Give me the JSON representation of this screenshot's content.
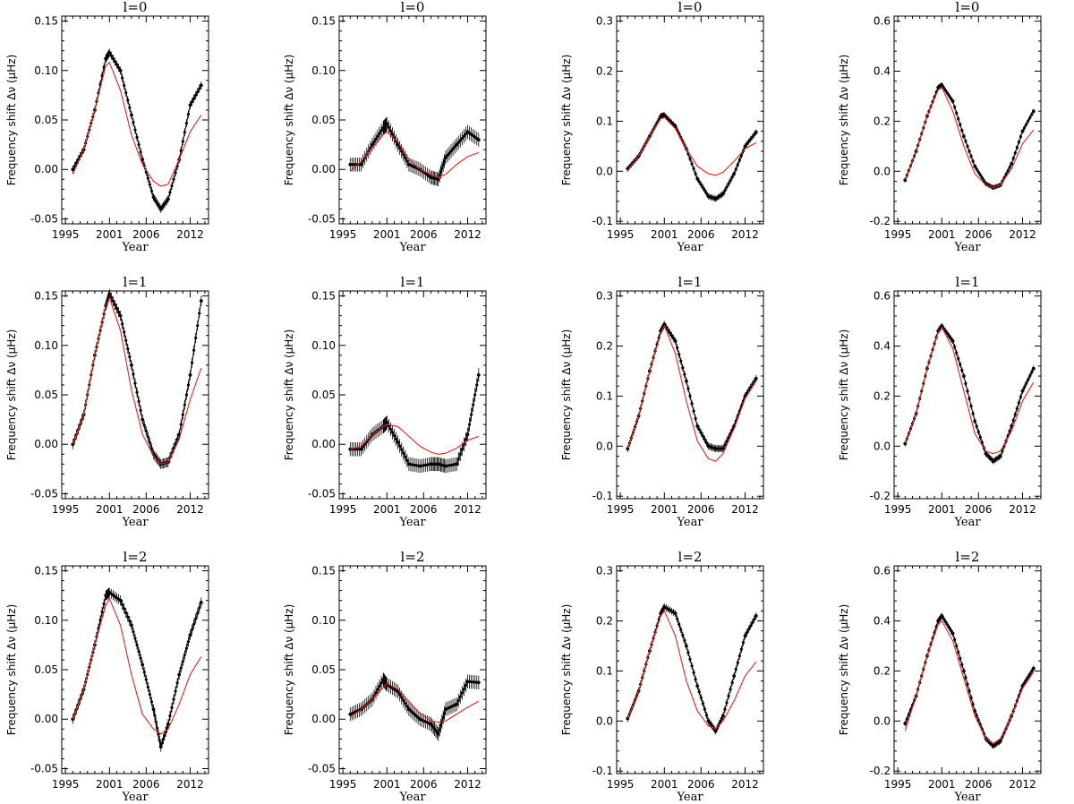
{
  "figure": {
    "ylabel": "Frequency shift Δν (μHz)",
    "xlabel": "Year"
  },
  "chart_data": [
    {
      "type": "line",
      "title": "l=0",
      "xlabel": "Year",
      "ylabel": "Frequency shift Δν (μHz)",
      "xlim": [
        1994.5,
        2014.5
      ],
      "ylim": [
        -0.055,
        0.155
      ],
      "xticks": [
        1995,
        2001,
        2006,
        2012
      ],
      "yticks": [
        -0.05,
        0.0,
        0.05,
        0.1,
        0.15
      ],
      "ytick_labels": [
        "-0.05",
        "0.00",
        "0.05",
        "0.10",
        "0.15"
      ],
      "x": [
        1996,
        1997.5,
        1999,
        2000.5,
        2001,
        2002.5,
        2004,
        2005.5,
        2007,
        2008,
        2009,
        2010.5,
        2012,
        2013.5
      ],
      "series": [
        {
          "values": [
            0.0,
            0.02,
            0.06,
            0.112,
            0.118,
            0.1,
            0.055,
            0.01,
            -0.028,
            -0.04,
            -0.03,
            0.01,
            0.065,
            0.085
          ],
          "err": 0.004
        },
        {
          "values": [
            -0.005,
            0.02,
            0.06,
            0.105,
            0.108,
            0.08,
            0.035,
            0.005,
            -0.012,
            -0.017,
            -0.015,
            0.01,
            0.038,
            0.055
          ]
        }
      ]
    },
    {
      "type": "line",
      "title": "l=0",
      "xlabel": "Year",
      "ylabel": "Frequency shift Δν (μHz)",
      "xlim": [
        1994.5,
        2014.5
      ],
      "ylim": [
        -0.055,
        0.155
      ],
      "xticks": [
        1995,
        2001,
        2006,
        2012
      ],
      "yticks": [
        -0.05,
        0.0,
        0.05,
        0.1,
        0.15
      ],
      "ytick_labels": [
        "-0.05",
        "0.00",
        "0.05",
        "0.10",
        "0.15"
      ],
      "x": [
        1996,
        1997.5,
        1999,
        2000.5,
        2001,
        2002.5,
        2004,
        2005.5,
        2007,
        2008,
        2009,
        2010.5,
        2012,
        2013.5
      ],
      "series": [
        {
          "values": [
            0.005,
            0.005,
            0.025,
            0.042,
            0.046,
            0.025,
            0.005,
            0.0,
            -0.008,
            -0.01,
            0.012,
            0.025,
            0.038,
            0.03
          ],
          "err": 0.007
        },
        {
          "values": [
            -0.002,
            0.008,
            0.022,
            0.035,
            0.038,
            0.028,
            0.01,
            0.0,
            -0.005,
            -0.008,
            -0.005,
            0.005,
            0.013,
            0.017
          ]
        }
      ]
    },
    {
      "type": "line",
      "title": "l=0",
      "xlabel": "Year",
      "ylabel": "Frequency shift Δν (μHz)",
      "xlim": [
        1994.5,
        2014.5
      ],
      "ylim": [
        -0.105,
        0.31
      ],
      "xticks": [
        1995,
        2001,
        2006,
        2012
      ],
      "yticks": [
        -0.1,
        0.0,
        0.1,
        0.2,
        0.3
      ],
      "ytick_labels": [
        "-0.1",
        "0.0",
        "0.1",
        "0.2",
        "0.3"
      ],
      "x": [
        1996,
        1997.5,
        1999,
        2000.5,
        2001,
        2002.5,
        2004,
        2005.5,
        2007,
        2008,
        2009,
        2010.5,
        2012,
        2013.5
      ],
      "series": [
        {
          "values": [
            0.005,
            0.03,
            0.07,
            0.11,
            0.112,
            0.09,
            0.045,
            -0.015,
            -0.05,
            -0.055,
            -0.045,
            -0.005,
            0.05,
            0.078
          ],
          "err": 0.006
        },
        {
          "values": [
            0.002,
            0.03,
            0.07,
            0.105,
            0.108,
            0.085,
            0.045,
            0.01,
            -0.005,
            -0.008,
            -0.002,
            0.02,
            0.045,
            0.057
          ]
        }
      ]
    },
    {
      "type": "line",
      "title": "l=0",
      "xlabel": "Year",
      "ylabel": "Frequency shift Δν (μHz)",
      "xlim": [
        1994.5,
        2014.5
      ],
      "ylim": [
        -0.21,
        0.62
      ],
      "xticks": [
        1995,
        2001,
        2006,
        2012
      ],
      "yticks": [
        -0.2,
        0.0,
        0.2,
        0.4,
        0.6
      ],
      "ytick_labels": [
        "-0.2",
        "0.0",
        "0.2",
        "0.4",
        "0.6"
      ],
      "x": [
        1996,
        1997.5,
        1999,
        2000.5,
        2001,
        2002.5,
        2004,
        2005.5,
        2007,
        2008,
        2009,
        2010.5,
        2012,
        2013.5
      ],
      "series": [
        {
          "values": [
            -0.035,
            0.08,
            0.22,
            0.335,
            0.345,
            0.28,
            0.14,
            0.02,
            -0.05,
            -0.065,
            -0.055,
            0.03,
            0.16,
            0.24
          ],
          "err": 0.01
        },
        {
          "values": [
            -0.035,
            0.08,
            0.22,
            0.325,
            0.335,
            0.24,
            0.1,
            -0.01,
            -0.055,
            -0.065,
            -0.055,
            0.01,
            0.11,
            0.165
          ]
        }
      ]
    },
    {
      "type": "line",
      "title": "l=1",
      "xlabel": "Year",
      "ylabel": "Frequency shift Δν (μHz)",
      "xlim": [
        1994.5,
        2014.5
      ],
      "ylim": [
        -0.055,
        0.155
      ],
      "xticks": [
        1995,
        2001,
        2006,
        2012
      ],
      "yticks": [
        -0.05,
        0.0,
        0.05,
        0.1,
        0.15
      ],
      "ytick_labels": [
        "-0.05",
        "0.00",
        "0.05",
        "0.10",
        "0.15"
      ],
      "x": [
        1996,
        1997.5,
        1999,
        2000.5,
        2001,
        2002.5,
        2004,
        2005.5,
        2007,
        2008,
        2009,
        2010.5,
        2012,
        2013.5
      ],
      "series": [
        {
          "values": [
            0.0,
            0.03,
            0.09,
            0.14,
            0.152,
            0.13,
            0.08,
            0.025,
            -0.01,
            -0.02,
            -0.018,
            0.01,
            0.07,
            0.145
          ],
          "err": 0.005
        },
        {
          "values": [
            0.0,
            0.03,
            0.09,
            0.14,
            0.148,
            0.115,
            0.055,
            0.01,
            -0.012,
            -0.02,
            -0.018,
            0.005,
            0.045,
            0.077
          ]
        }
      ]
    },
    {
      "type": "line",
      "title": "l=1",
      "xlabel": "Year",
      "ylabel": "Frequency shift Δν (μHz)",
      "xlim": [
        1994.5,
        2014.5
      ],
      "ylim": [
        -0.055,
        0.155
      ],
      "xticks": [
        1995,
        2001,
        2006,
        2012
      ],
      "yticks": [
        -0.05,
        0.0,
        0.05,
        0.1,
        0.15
      ],
      "ytick_labels": [
        "-0.05",
        "0.00",
        "0.05",
        "0.10",
        "0.15"
      ],
      "x": [
        1996,
        1997.5,
        1999,
        2000.5,
        2001,
        2002.5,
        2004,
        2005.5,
        2007,
        2008,
        2009,
        2010.5,
        2012,
        2013.5
      ],
      "series": [
        {
          "values": [
            -0.005,
            -0.005,
            0.01,
            0.018,
            0.022,
            0.002,
            -0.02,
            -0.022,
            -0.02,
            -0.02,
            -0.022,
            -0.02,
            0.01,
            0.07
          ],
          "err": 0.007
        },
        {
          "values": [
            -0.005,
            -0.002,
            0.01,
            0.018,
            0.02,
            0.018,
            0.008,
            -0.002,
            -0.008,
            -0.01,
            -0.009,
            -0.004,
            0.004,
            0.008
          ]
        }
      ]
    },
    {
      "type": "line",
      "title": "l=1",
      "xlabel": "Year",
      "ylabel": "Frequency shift Δν (μHz)",
      "xlim": [
        1994.5,
        2014.5
      ],
      "ylim": [
        -0.105,
        0.31
      ],
      "xticks": [
        1995,
        2001,
        2006,
        2012
      ],
      "yticks": [
        -0.1,
        0.0,
        0.1,
        0.2,
        0.3
      ],
      "ytick_labels": [
        "-0.1",
        "0.0",
        "0.1",
        "0.2",
        "0.3"
      ],
      "x": [
        1996,
        1997.5,
        1999,
        2000.5,
        2001,
        2002.5,
        2004,
        2005.5,
        2007,
        2008,
        2009,
        2010.5,
        2012,
        2013.5
      ],
      "series": [
        {
          "values": [
            -0.005,
            0.06,
            0.15,
            0.23,
            0.243,
            0.21,
            0.13,
            0.04,
            0.0,
            -0.005,
            -0.005,
            0.04,
            0.1,
            0.135
          ],
          "err": 0.007
        },
        {
          "values": [
            -0.005,
            0.06,
            0.15,
            0.225,
            0.24,
            0.185,
            0.09,
            0.01,
            -0.025,
            -0.03,
            -0.015,
            0.035,
            0.095,
            0.13
          ]
        }
      ]
    },
    {
      "type": "line",
      "title": "l=1",
      "xlabel": "Year",
      "ylabel": "Frequency shift Δν (μHz)",
      "xlim": [
        1994.5,
        2014.5
      ],
      "ylim": [
        -0.21,
        0.62
      ],
      "xticks": [
        1995,
        2001,
        2006,
        2012
      ],
      "yticks": [
        -0.2,
        0.0,
        0.2,
        0.4,
        0.6
      ],
      "ytick_labels": [
        "-0.2",
        "0.0",
        "0.2",
        "0.4",
        "0.6"
      ],
      "x": [
        1996,
        1997.5,
        1999,
        2000.5,
        2001,
        2002.5,
        2004,
        2005.5,
        2007,
        2008,
        2009,
        2010.5,
        2012,
        2013.5
      ],
      "series": [
        {
          "values": [
            0.01,
            0.13,
            0.31,
            0.46,
            0.48,
            0.42,
            0.28,
            0.1,
            -0.03,
            -0.06,
            -0.04,
            0.08,
            0.22,
            0.31
          ],
          "err": 0.012
        },
        {
          "values": [
            0.01,
            0.13,
            0.31,
            0.455,
            0.475,
            0.39,
            0.22,
            0.05,
            -0.02,
            -0.03,
            -0.02,
            0.06,
            0.18,
            0.255
          ]
        }
      ]
    },
    {
      "type": "line",
      "title": "l=2",
      "xlabel": "Year",
      "ylabel": "Frequency shift Δν (μHz)",
      "xlim": [
        1994.5,
        2014.5
      ],
      "ylim": [
        -0.055,
        0.155
      ],
      "xticks": [
        1995,
        2001,
        2006,
        2012
      ],
      "yticks": [
        -0.05,
        0.0,
        0.05,
        0.1,
        0.15
      ],
      "ytick_labels": [
        "-0.05",
        "0.00",
        "0.05",
        "0.10",
        "0.15"
      ],
      "x": [
        1996,
        1997.5,
        1999,
        2000.5,
        2001,
        2002.5,
        2004,
        2005.5,
        2007,
        2008,
        2009,
        2010.5,
        2012,
        2013.5
      ],
      "series": [
        {
          "values": [
            0.0,
            0.03,
            0.075,
            0.125,
            0.128,
            0.12,
            0.095,
            0.055,
            0.01,
            -0.028,
            -0.005,
            0.045,
            0.085,
            0.118
          ],
          "err": 0.005
        },
        {
          "values": [
            0.0,
            0.03,
            0.075,
            0.115,
            0.122,
            0.095,
            0.045,
            0.005,
            -0.01,
            -0.015,
            -0.01,
            0.015,
            0.045,
            0.063
          ]
        }
      ]
    },
    {
      "type": "line",
      "title": "l=2",
      "xlabel": "Year",
      "ylabel": "Frequency shift Δν (μHz)",
      "xlim": [
        1994.5,
        2014.5
      ],
      "ylim": [
        -0.055,
        0.155
      ],
      "xticks": [
        1995,
        2001,
        2006,
        2012
      ],
      "yticks": [
        -0.05,
        0.0,
        0.05,
        0.1,
        0.15
      ],
      "ytick_labels": [
        "-0.05",
        "0.00",
        "0.05",
        "0.10",
        "0.15"
      ],
      "x": [
        1996,
        1997.5,
        1999,
        2000.5,
        2001,
        2002.5,
        2004,
        2005.5,
        2007,
        2008,
        2009,
        2010.5,
        2012,
        2013.5
      ],
      "series": [
        {
          "values": [
            0.005,
            0.01,
            0.02,
            0.04,
            0.035,
            0.028,
            0.01,
            0.0,
            -0.005,
            -0.015,
            0.01,
            0.015,
            0.038,
            0.037
          ],
          "err": 0.007
        },
        {
          "values": [
            0.002,
            0.01,
            0.02,
            0.032,
            0.036,
            0.03,
            0.018,
            0.006,
            -0.002,
            -0.003,
            -0.002,
            0.005,
            0.012,
            0.018
          ]
        }
      ]
    },
    {
      "type": "line",
      "title": "l=2",
      "xlabel": "Year",
      "ylabel": "Frequency shift Δν (μHz)",
      "xlim": [
        1994.5,
        2014.5
      ],
      "ylim": [
        -0.105,
        0.31
      ],
      "xticks": [
        1995,
        2001,
        2006,
        2012
      ],
      "yticks": [
        -0.1,
        0.0,
        0.1,
        0.2,
        0.3
      ],
      "ytick_labels": [
        "-0.1",
        "0.0",
        "0.1",
        "0.2",
        "0.3"
      ],
      "x": [
        1996,
        1997.5,
        1999,
        2000.5,
        2001,
        2002.5,
        2004,
        2005.5,
        2007,
        2008,
        2009,
        2010.5,
        2012,
        2013.5
      ],
      "series": [
        {
          "values": [
            0.005,
            0.06,
            0.14,
            0.215,
            0.228,
            0.215,
            0.15,
            0.07,
            0.0,
            -0.02,
            0.01,
            0.09,
            0.17,
            0.21
          ],
          "err": 0.007
        },
        {
          "values": [
            0.005,
            0.06,
            0.14,
            0.21,
            0.22,
            0.17,
            0.08,
            0.02,
            -0.01,
            -0.015,
            0.0,
            0.04,
            0.09,
            0.118
          ]
        }
      ]
    },
    {
      "type": "line",
      "title": "l=2",
      "xlabel": "Year",
      "ylabel": "Frequency shift Δν (μHz)",
      "xlim": [
        1994.5,
        2014.5
      ],
      "ylim": [
        -0.21,
        0.62
      ],
      "xticks": [
        1995,
        2001,
        2006,
        2012
      ],
      "yticks": [
        -0.2,
        0.0,
        0.2,
        0.4,
        0.6
      ],
      "ytick_labels": [
        "-0.2",
        "0.0",
        "0.2",
        "0.4",
        "0.6"
      ],
      "x": [
        1996,
        1997.5,
        1999,
        2000.5,
        2001,
        2002.5,
        2004,
        2005.5,
        2007,
        2008,
        2009,
        2010.5,
        2012,
        2013.5
      ],
      "series": [
        {
          "values": [
            -0.01,
            0.1,
            0.26,
            0.4,
            0.42,
            0.35,
            0.2,
            0.04,
            -0.07,
            -0.1,
            -0.08,
            0.02,
            0.14,
            0.21
          ],
          "err": 0.012
        },
        {
          "values": [
            -0.04,
            0.1,
            0.26,
            0.385,
            0.4,
            0.32,
            0.17,
            0.02,
            -0.07,
            -0.09,
            -0.07,
            0.02,
            0.13,
            0.195
          ]
        }
      ]
    }
  ]
}
